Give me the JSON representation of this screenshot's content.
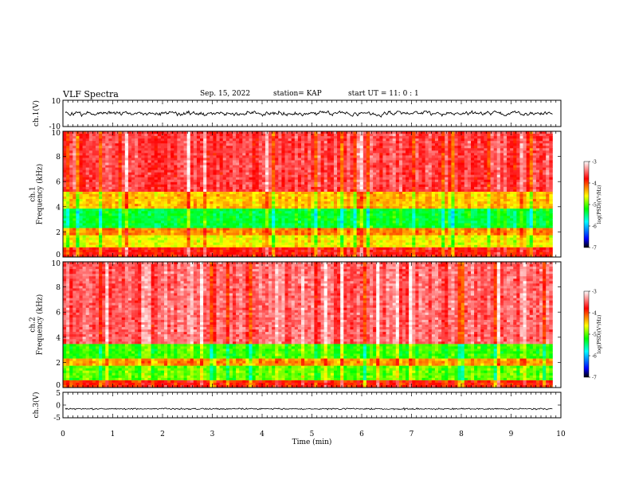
{
  "header": {
    "title": "VLF Spectra",
    "date": "Sep. 15, 2022",
    "station": "station= KAP",
    "start": "start  UT =  11: 0  : 1"
  },
  "chart_data": [
    {
      "type": "line",
      "panel": "ch1-waveform",
      "ylabel": "ch.1(V)",
      "ylim": [
        -10,
        10
      ],
      "yticks": [
        "10",
        "-10"
      ],
      "x_range_min": [
        0,
        9.83
      ],
      "description_values": "noisy waveform mostly between -5 and 5 V, centered near 0"
    },
    {
      "type": "heatmap",
      "panel": "ch1-spectrogram",
      "ylabel": "ch.1\nFrequency  (kHz)",
      "ylim": [
        0,
        10
      ],
      "yticks": [
        "0",
        "2",
        "4",
        "6",
        "8",
        "10"
      ],
      "colorbar": {
        "label": "log(PSD)(V²/Hz)",
        "range": [
          -7,
          -3
        ],
        "ticks": [
          "-3",
          "-4",
          "-5",
          "-6",
          "-7"
        ]
      },
      "bands": [
        {
          "from": 0.0,
          "to": 0.8,
          "level": -3.8
        },
        {
          "from": 0.8,
          "to": 1.8,
          "level": -4.6
        },
        {
          "from": 1.8,
          "to": 2.3,
          "level": -4.2
        },
        {
          "from": 2.3,
          "to": 3.8,
          "level": -5.3
        },
        {
          "from": 3.8,
          "to": 5.1,
          "level": -4.4
        },
        {
          "from": 5.1,
          "to": 10.0,
          "level": -3.6
        }
      ]
    },
    {
      "type": "heatmap",
      "panel": "ch2-spectrogram",
      "ylabel": "ch.2\nFrequency  (kHz)",
      "ylim": [
        0,
        10
      ],
      "yticks": [
        "0",
        "2",
        "4",
        "6",
        "8",
        "10"
      ],
      "colorbar": {
        "label": "log(PSD)(V²/Hz)",
        "range": [
          -7,
          -3
        ],
        "ticks": [
          "-3",
          "-4",
          "-5",
          "-6",
          "-7"
        ]
      },
      "bands": [
        {
          "from": 0.0,
          "to": 0.6,
          "level": -3.9
        },
        {
          "from": 0.6,
          "to": 1.8,
          "level": -5.0
        },
        {
          "from": 1.8,
          "to": 2.3,
          "level": -4.3
        },
        {
          "from": 2.3,
          "to": 3.4,
          "level": -5.1
        },
        {
          "from": 3.4,
          "to": 10.0,
          "level": -3.5
        }
      ]
    },
    {
      "type": "line",
      "panel": "ch3-waveform",
      "ylabel": "ch.3(V)",
      "ylim": [
        -5,
        5
      ],
      "yticks": [
        "5",
        "0",
        "-5"
      ],
      "x_range_min": [
        0,
        9.83
      ],
      "description_values": "flat dense signal near -1.5 V"
    }
  ],
  "xaxis": {
    "label": "Time  (min)",
    "ticks": [
      "0",
      "1",
      "2",
      "3",
      "4",
      "5",
      "6",
      "7",
      "8",
      "9",
      "10"
    ],
    "range": [
      0,
      10
    ]
  }
}
